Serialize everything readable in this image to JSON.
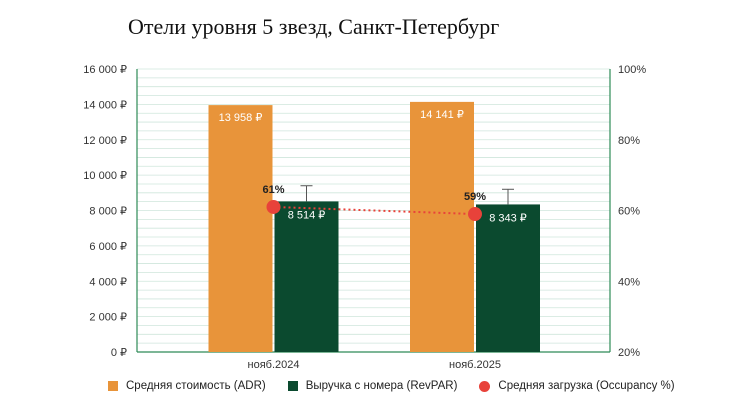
{
  "chart_data": {
    "type": "bar",
    "title": "Отели уровня 5 звезд, Санкт-Петербург",
    "categories": [
      "нояб.2024",
      "нояб.2025"
    ],
    "y_left": {
      "ticks": [
        "0 ₽",
        "2 000 ₽",
        "4 000 ₽",
        "6 000 ₽",
        "8 000 ₽",
        "10 000 ₽",
        "12 000 ₽",
        "14 000 ₽",
        "16 000 ₽"
      ],
      "ylim": [
        0,
        16000
      ]
    },
    "y_right": {
      "ticks": [
        "20%",
        "40%",
        "60%",
        "80%",
        "100%"
      ],
      "ylim": [
        20,
        100
      ]
    },
    "grid": true,
    "series": [
      {
        "name": "Средняя стоимость (ADR)",
        "kind": "bar",
        "axis": "left",
        "values": [
          13958,
          14141
        ],
        "labels": [
          "13 958 ₽",
          "14 141 ₽"
        ],
        "color": "#E8943A"
      },
      {
        "name": "Выручка с номера (RevPAR)",
        "kind": "bar",
        "axis": "left",
        "values": [
          8514,
          8343
        ],
        "labels": [
          "8 514 ₽",
          "8 343 ₽"
        ],
        "error_upper": [
          9400,
          9200
        ],
        "color": "#0B4A2F"
      },
      {
        "name": "Средняя загрузка (Occupancy %)",
        "kind": "line",
        "axis": "right",
        "values": [
          61,
          59
        ],
        "labels": [
          "61%",
          "59%"
        ],
        "color": "#E8423A"
      }
    ],
    "legend_position": "bottom"
  }
}
